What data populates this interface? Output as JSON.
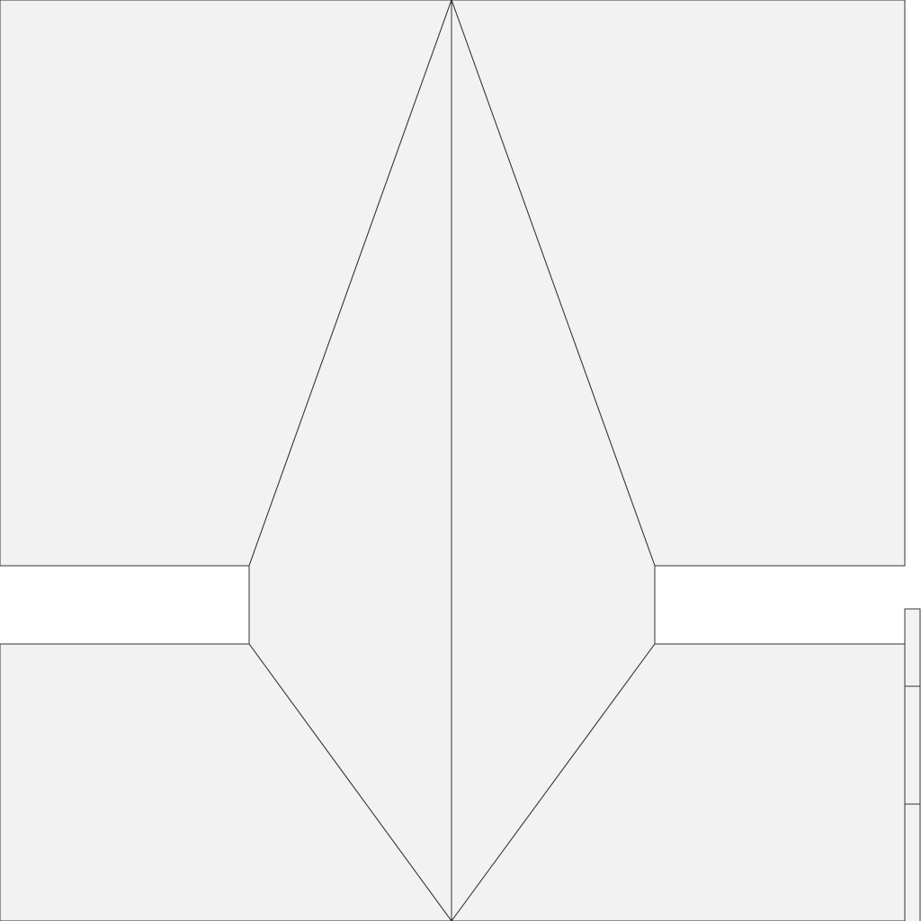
{
  "map": {
    "fill_color": "#f2f2f2",
    "stroke_color": "#333333",
    "background_color": "#ffffff",
    "parcel_count": 9,
    "labels_shown": false
  }
}
